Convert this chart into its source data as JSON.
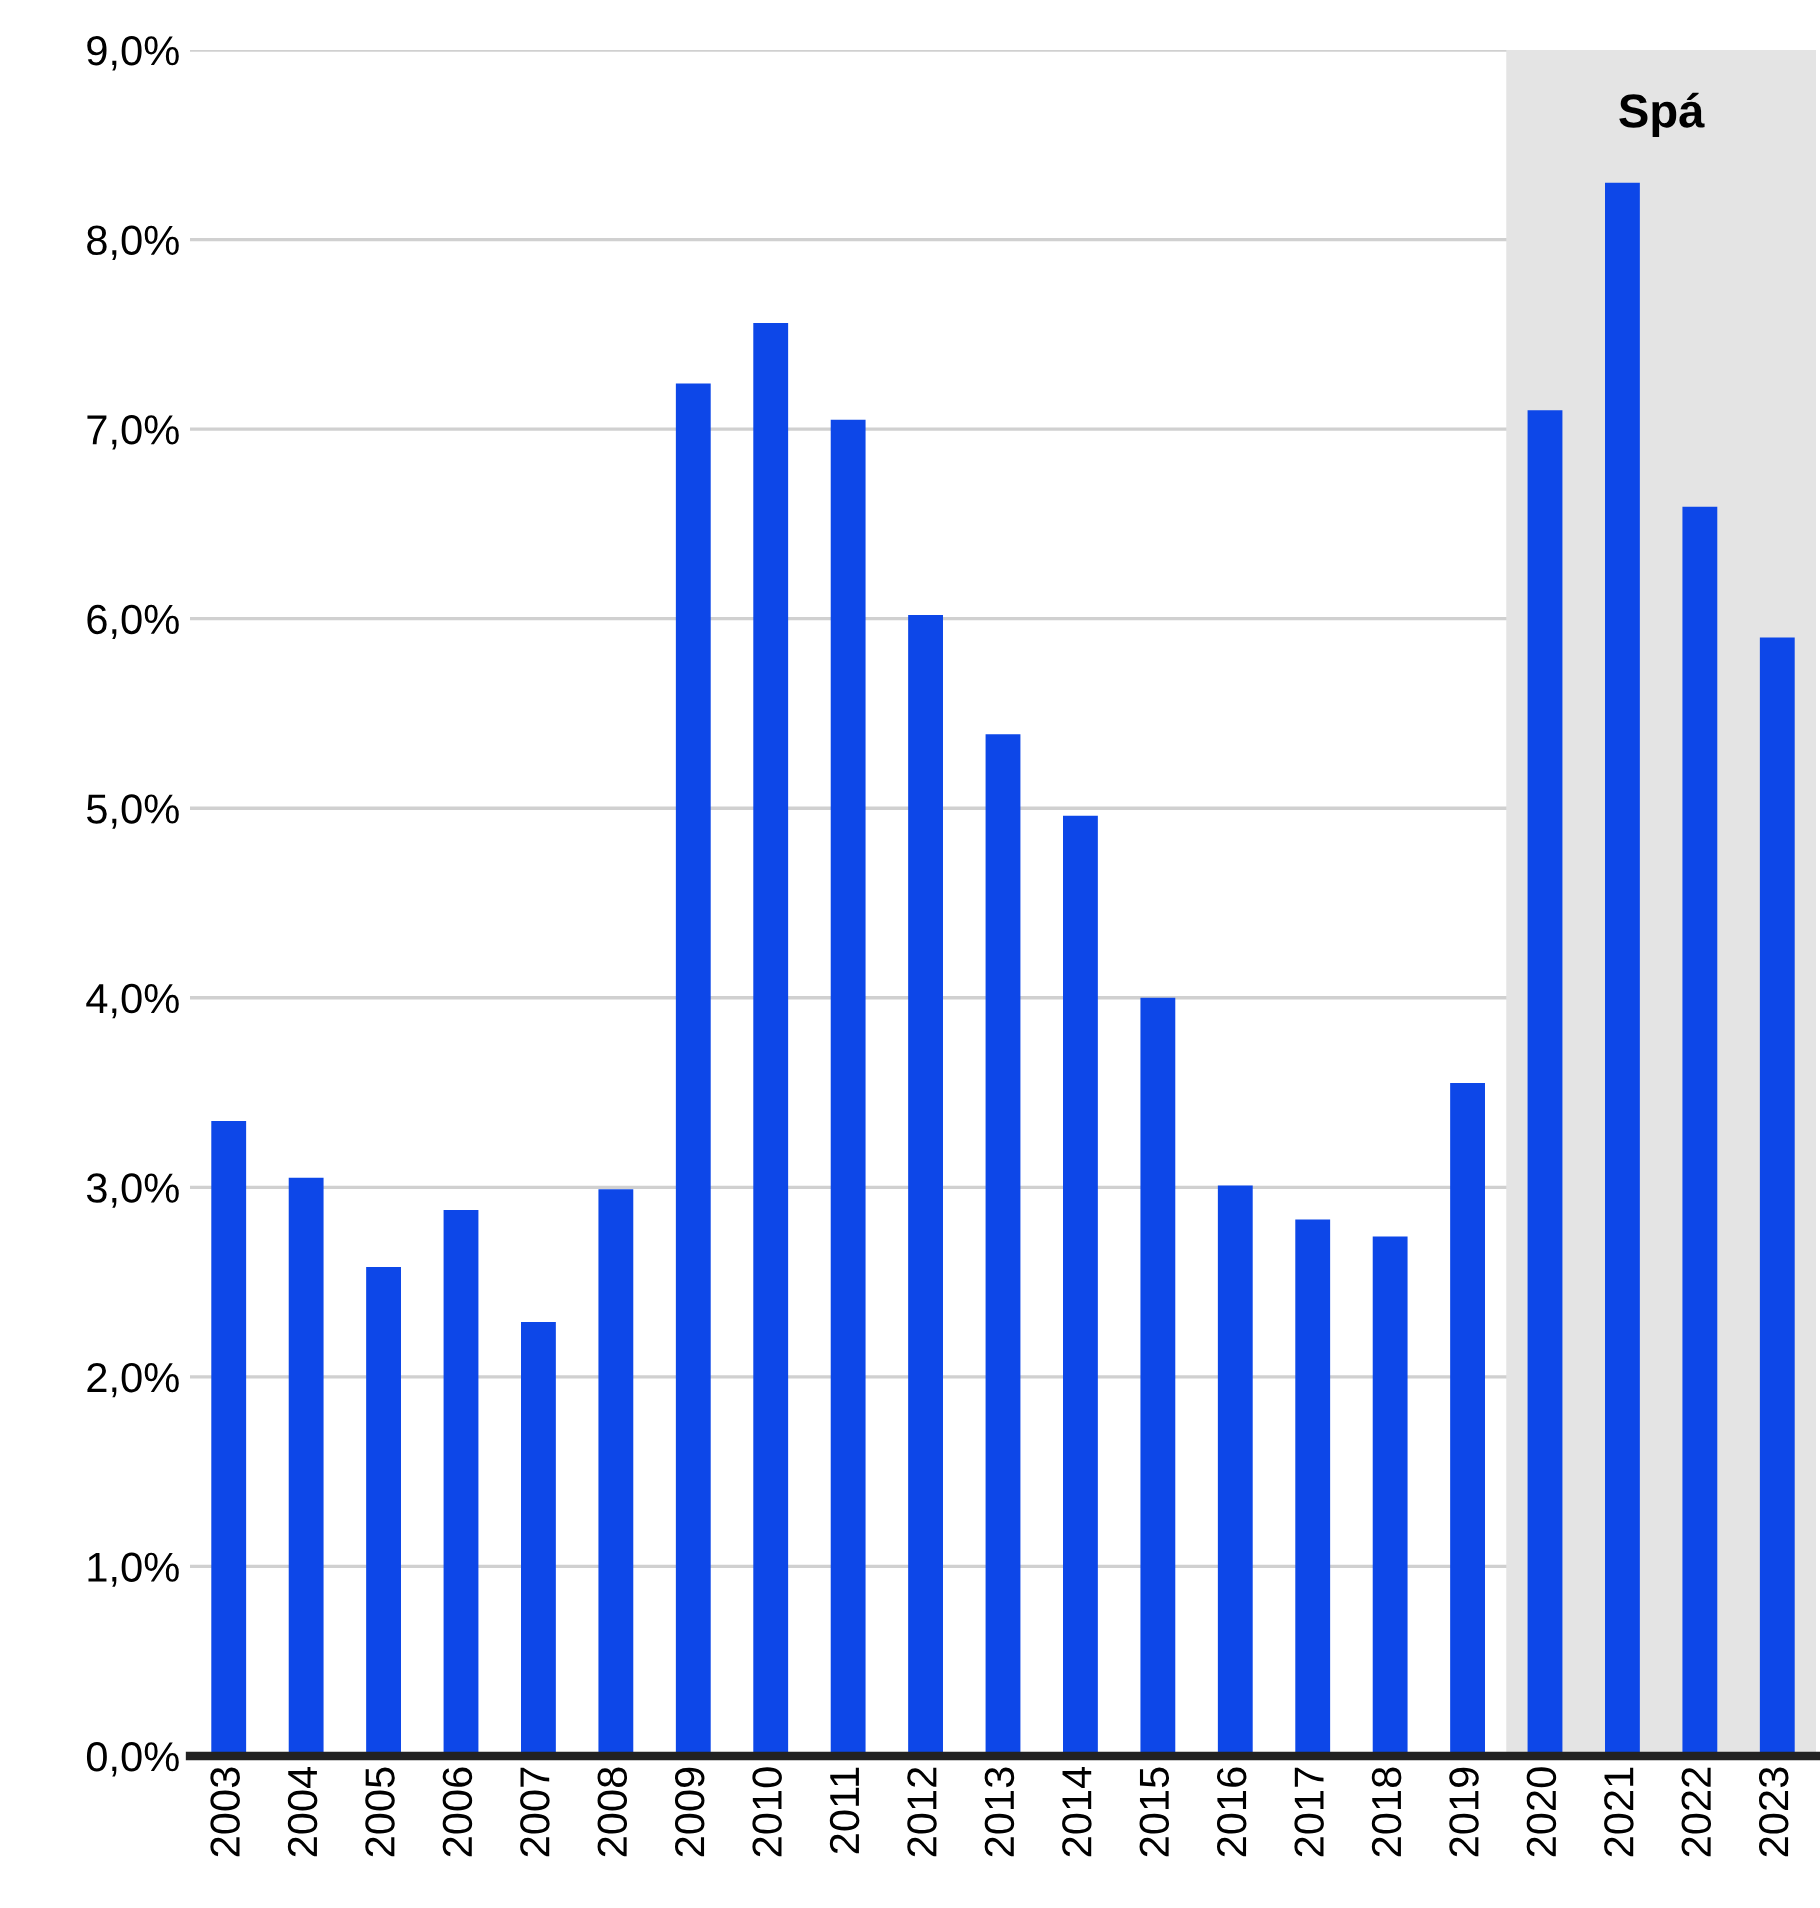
{
  "chart_data": {
    "type": "bar",
    "categories": [
      "2003",
      "2004",
      "2005",
      "2006",
      "2007",
      "2008",
      "2009",
      "2010",
      "2011",
      "2012",
      "2013",
      "2014",
      "2015",
      "2016",
      "2017",
      "2018",
      "2019",
      "2020",
      "2021",
      "2022",
      "2023"
    ],
    "values": [
      3.35,
      3.05,
      2.58,
      2.88,
      2.29,
      2.99,
      7.24,
      7.56,
      7.05,
      6.02,
      5.39,
      4.96,
      4.0,
      3.01,
      2.83,
      2.74,
      3.55,
      7.1,
      8.3,
      6.59,
      5.9
    ],
    "color": "#0d47e8",
    "ylim": [
      0,
      9
    ],
    "yticks": [
      {
        "value": 0,
        "label": "0,0%"
      },
      {
        "value": 1,
        "label": "1,0%"
      },
      {
        "value": 2,
        "label": "2,0%"
      },
      {
        "value": 3,
        "label": "3,0%"
      },
      {
        "value": 4,
        "label": "4,0%"
      },
      {
        "value": 5,
        "label": "5,0%"
      },
      {
        "value": 6,
        "label": "6,0%"
      },
      {
        "value": 7,
        "label": "7,0%"
      },
      {
        "value": 8,
        "label": "8,0%"
      },
      {
        "value": 9,
        "label": "9,0%"
      }
    ],
    "grid": "y",
    "bands": [
      {
        "axis": "x",
        "from": "2020",
        "to": "2023",
        "label": "Spá",
        "color": "#e4e4e4"
      }
    ]
  }
}
